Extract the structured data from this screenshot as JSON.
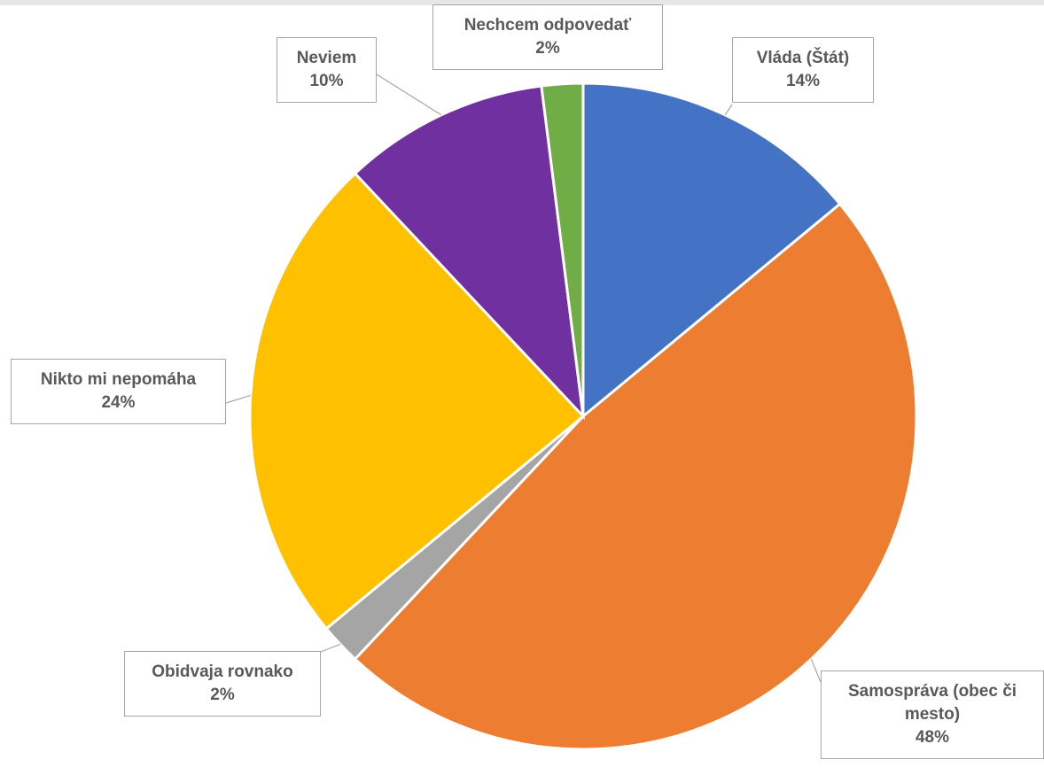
{
  "chart_data": {
    "type": "pie",
    "categories": [
      "Vláda (Štát)",
      "Samospráva (obec či mesto)",
      "Obidvaja rovnako",
      "Nikto mi nepomáha",
      "Neviem",
      "Nechcem odpovedať"
    ],
    "values": [
      14,
      48,
      2,
      24,
      10,
      2
    ],
    "value_labels": [
      "14%",
      "48%",
      "2%",
      "24%",
      "10%",
      "2%"
    ],
    "colors": [
      "#4472c4",
      "#ed7d31",
      "#a5a5a5",
      "#ffc000",
      "#7030a0",
      "#70ad47"
    ]
  }
}
